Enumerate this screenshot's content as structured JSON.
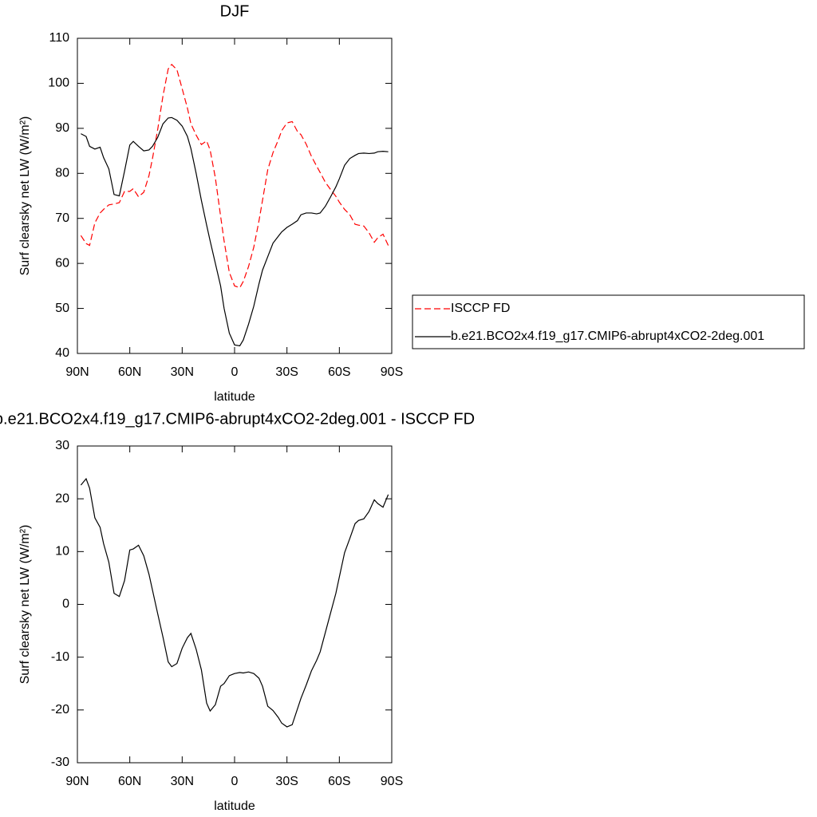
{
  "chart_data": [
    {
      "type": "line",
      "title": "DJF",
      "x_label": "latitude",
      "y_label": "Surf clearsky net LW (W/m²)",
      "xlim": [
        90,
        -90
      ],
      "xticks": [
        {
          "value": 90,
          "label": "90N"
        },
        {
          "value": 60,
          "label": "60N"
        },
        {
          "value": 30,
          "label": "30N"
        },
        0,
        {
          "value": -30,
          "label": "30S"
        },
        {
          "value": -60,
          "label": "60S"
        },
        {
          "value": -90,
          "label": "90S"
        }
      ],
      "ylim": [
        40,
        110
      ],
      "yticks": [
        40,
        50,
        60,
        70,
        80,
        90,
        100,
        110
      ],
      "legend": "right",
      "x": [
        88,
        85,
        83,
        80,
        77,
        75,
        72,
        69,
        66,
        63,
        60,
        58,
        55,
        52,
        49,
        47,
        44,
        41,
        38,
        36,
        33,
        30,
        27,
        25,
        22,
        19,
        16,
        14,
        11,
        8,
        6,
        3,
        0,
        -3,
        -5,
        -8,
        -11,
        -14,
        -16,
        -19,
        -22,
        -25,
        -27,
        -30,
        -33,
        -36,
        -38,
        -41,
        -44,
        -47,
        -49,
        -52,
        -55,
        -58,
        -60,
        -63,
        -66,
        -69,
        -71,
        -74,
        -77,
        -80,
        -82,
        -85,
        -88
      ],
      "series": [
        {
          "name": "ISCCP FD",
          "color": "#ff0000",
          "line_style": "dashed",
          "values": [
            66.2,
            64.4,
            64,
            69,
            71.2,
            72,
            73,
            73.2,
            73.5,
            76,
            76,
            76.6,
            74.8,
            75.8,
            79.5,
            83.3,
            89.8,
            97.2,
            103.2,
            104.2,
            103,
            98.8,
            94.5,
            91,
            88.5,
            86.4,
            87.2,
            85.2,
            79,
            70.5,
            65,
            58,
            55,
            54.6,
            56,
            59.3,
            63.6,
            69.5,
            74,
            80.8,
            84.6,
            87.4,
            89.5,
            91.2,
            91.5,
            89.3,
            88.6,
            86.5,
            83.8,
            81.6,
            80.2,
            78,
            76.4,
            74.9,
            73.6,
            72,
            70.8,
            68.7,
            68.5,
            68.3,
            66.8,
            64.7,
            65.7,
            66.5,
            64
          ]
        },
        {
          "name": "b.e21.BCO2x4.f19_g17.CMIP6-abrupt4xCO2-2deg.001",
          "color": "#000000",
          "line_style": "solid",
          "values": [
            88.8,
            88.2,
            86,
            85.4,
            85.8,
            83.5,
            81,
            75.3,
            75,
            80.5,
            86.3,
            87.1,
            86,
            85,
            85.2,
            86,
            88,
            91,
            92.3,
            92.4,
            91.8,
            90.5,
            88.2,
            85.5,
            80,
            74,
            68.5,
            65,
            60,
            55,
            50,
            44.5,
            41.9,
            41.7,
            43,
            46.5,
            50.5,
            55.5,
            58.5,
            61.5,
            64.5,
            66,
            67,
            68,
            68.7,
            69.5,
            70.8,
            71.2,
            71.2,
            71,
            71.2,
            72.7,
            74.8,
            77,
            78.8,
            81.8,
            83.3,
            84,
            84.4,
            84.5,
            84.4,
            84.5,
            84.8,
            84.9,
            84.8
          ]
        }
      ]
    },
    {
      "type": "line",
      "title": "b.e21.BCO2x4.f19_g17.CMIP6-abrupt4xCO2-2deg.001 - ISCCP FD",
      "x_label": "latitude",
      "y_label": "Surf clearsky net LW (W/m²)",
      "xlim": [
        90,
        -90
      ],
      "xticks": [
        {
          "value": 90,
          "label": "90N"
        },
        {
          "value": 60,
          "label": "60N"
        },
        {
          "value": 30,
          "label": "30N"
        },
        0,
        {
          "value": -30,
          "label": "30S"
        },
        {
          "value": -60,
          "label": "60S"
        },
        {
          "value": -90,
          "label": "90S"
        }
      ],
      "ylim": [
        -30,
        30
      ],
      "yticks": [
        -30,
        -20,
        -10,
        0,
        10,
        20,
        30
      ],
      "x": [
        88,
        85,
        83,
        80,
        77,
        75,
        72,
        69,
        66,
        63,
        60,
        58,
        55,
        52,
        49,
        47,
        44,
        41,
        38,
        36,
        33,
        30,
        27,
        25,
        22,
        19,
        16,
        14,
        11,
        8,
        6,
        3,
        0,
        -3,
        -5,
        -8,
        -11,
        -14,
        -16,
        -19,
        -22,
        -25,
        -27,
        -30,
        -33,
        -36,
        -38,
        -41,
        -44,
        -47,
        -49,
        -52,
        -55,
        -58,
        -60,
        -63,
        -66,
        -69,
        -71,
        -74,
        -77,
        -80,
        -82,
        -85,
        -88
      ],
      "color": "#000000",
      "line_style": "solid",
      "values": [
        22.6,
        23.8,
        22.0,
        16.4,
        14.6,
        11.5,
        8.0,
        2.1,
        1.5,
        4.5,
        10.3,
        10.5,
        11.2,
        9.2,
        5.7,
        2.7,
        -1.8,
        -6.2,
        -10.9,
        -11.8,
        -11.2,
        -8.3,
        -6.3,
        -5.5,
        -8.5,
        -12.4,
        -18.7,
        -20.2,
        -19.0,
        -15.5,
        -15.0,
        -13.5,
        -13.1,
        -12.9,
        -13.0,
        -12.8,
        -13.1,
        -14.0,
        -15.5,
        -19.3,
        -20.1,
        -21.4,
        -22.5,
        -23.2,
        -22.8,
        -19.8,
        -17.8,
        -15.3,
        -12.6,
        -10.6,
        -9.0,
        -5.3,
        -1.6,
        2.1,
        5.2,
        9.8,
        12.5,
        15.3,
        15.9,
        16.2,
        17.6,
        19.8,
        19.1,
        18.4,
        20.8
      ]
    }
  ]
}
